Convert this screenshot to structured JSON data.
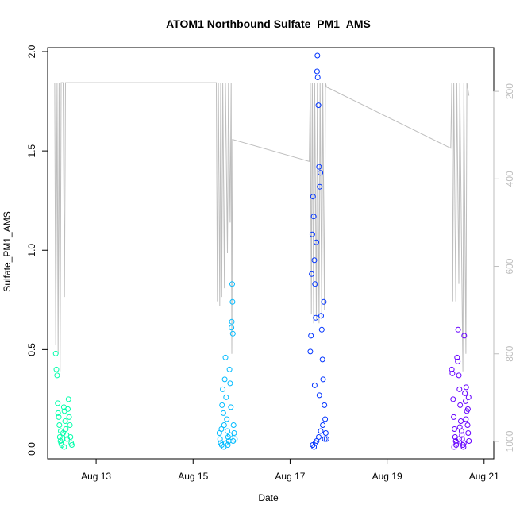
{
  "chart_data": {
    "type": "scatter",
    "title": "ATOM1 Northbound Sulfate_PM1_AMS",
    "xlabel": "Date",
    "ylabel": "Sulfate_PM1_AMS",
    "xlim": [
      "2016-08-12",
      "2016-08-21.2"
    ],
    "ylim": [
      -0.05,
      2.02
    ],
    "y_ticks": [
      0.0,
      0.5,
      1.0,
      1.5,
      2.0
    ],
    "x_ticks": [
      {
        "date": "2016-08-13",
        "label": "Aug 13"
      },
      {
        "date": "2016-08-15",
        "label": "Aug 15"
      },
      {
        "date": "2016-08-17",
        "label": "Aug 17"
      },
      {
        "date": "2016-08-19",
        "label": "Aug 19"
      },
      {
        "date": "2016-08-21",
        "label": "Aug 21"
      }
    ],
    "y2_reversed": true,
    "y2_ticks": [
      200,
      400,
      600,
      800,
      1000
    ],
    "y2_color": "#bebebe",
    "point_color_scale": [
      "#00ffcc",
      "#00ccff",
      "#0033ff",
      "#6600ff"
    ],
    "series": [
      {
        "name": "",
        "day": "Aug 12",
        "color": "#00ffaa",
        "points": [
          [
            "2016-08-12 04:00",
            0.48
          ],
          [
            "2016-08-12 04:20",
            0.4
          ],
          [
            "2016-08-12 04:40",
            0.37
          ],
          [
            "2016-08-12 05:00",
            0.23
          ],
          [
            "2016-08-12 05:10",
            0.18
          ],
          [
            "2016-08-12 05:30",
            0.16
          ],
          [
            "2016-08-12 05:50",
            0.12
          ],
          [
            "2016-08-12 06:00",
            0.06
          ],
          [
            "2016-08-12 06:20",
            0.04
          ],
          [
            "2016-08-12 06:40",
            0.03
          ],
          [
            "2016-08-12 07:00",
            0.02
          ],
          [
            "2016-08-12 07:20",
            0.05
          ],
          [
            "2016-08-12 07:40",
            0.08
          ],
          [
            "2016-08-12 08:00",
            0.21
          ],
          [
            "2016-08-12 08:20",
            0.19
          ],
          [
            "2016-08-12 08:40",
            0.14
          ],
          [
            "2016-08-12 09:00",
            0.1
          ],
          [
            "2016-08-12 09:20",
            0.07
          ],
          [
            "2016-08-12 09:40",
            0.05
          ],
          [
            "2016-08-12 10:00",
            0.2
          ],
          [
            "2016-08-12 10:20",
            0.25
          ],
          [
            "2016-08-12 10:40",
            0.16
          ],
          [
            "2016-08-12 11:00",
            0.12
          ],
          [
            "2016-08-12 11:20",
            0.06
          ],
          [
            "2016-08-12 11:40",
            0.03
          ],
          [
            "2016-08-12 12:00",
            0.02
          ],
          [
            "2016-08-12 06:30",
            0.09
          ],
          [
            "2016-08-12 08:10",
            0.01
          ]
        ]
      },
      {
        "name": "",
        "day": "Aug 15",
        "color": "#00bbff",
        "points": [
          [
            "2016-08-15 13:00",
            0.08
          ],
          [
            "2016-08-15 13:20",
            0.05
          ],
          [
            "2016-08-15 13:40",
            0.03
          ],
          [
            "2016-08-15 14:00",
            0.1
          ],
          [
            "2016-08-15 14:20",
            0.22
          ],
          [
            "2016-08-15 14:40",
            0.3
          ],
          [
            "2016-08-15 15:00",
            0.18
          ],
          [
            "2016-08-15 15:20",
            0.12
          ],
          [
            "2016-08-15 15:40",
            0.35
          ],
          [
            "2016-08-15 16:00",
            0.46
          ],
          [
            "2016-08-15 16:20",
            0.26
          ],
          [
            "2016-08-15 16:40",
            0.15
          ],
          [
            "2016-08-15 17:00",
            0.09
          ],
          [
            "2016-08-15 17:20",
            0.06
          ],
          [
            "2016-08-15 17:40",
            0.04
          ],
          [
            "2016-08-15 18:00",
            0.4
          ],
          [
            "2016-08-15 18:20",
            0.33
          ],
          [
            "2016-08-15 18:40",
            0.21
          ],
          [
            "2016-08-15 19:00",
            0.61
          ],
          [
            "2016-08-15 19:10",
            0.64
          ],
          [
            "2016-08-15 19:20",
            0.83
          ],
          [
            "2016-08-15 19:30",
            0.74
          ],
          [
            "2016-08-15 19:40",
            0.58
          ],
          [
            "2016-08-15 20:00",
            0.12
          ],
          [
            "2016-08-15 20:20",
            0.08
          ],
          [
            "2016-08-15 20:40",
            0.05
          ],
          [
            "2016-08-15 14:10",
            0.02
          ],
          [
            "2016-08-15 15:10",
            0.01
          ],
          [
            "2016-08-15 16:10",
            0.03
          ],
          [
            "2016-08-15 17:10",
            0.02
          ],
          [
            "2016-08-15 18:10",
            0.07
          ],
          [
            "2016-08-15 19:50",
            0.04
          ]
        ]
      },
      {
        "name": "",
        "day": "Aug 17",
        "color": "#0033ff",
        "points": [
          [
            "2016-08-17 10:00",
            0.49
          ],
          [
            "2016-08-17 10:20",
            0.57
          ],
          [
            "2016-08-17 10:40",
            0.88
          ],
          [
            "2016-08-17 11:00",
            1.08
          ],
          [
            "2016-08-17 11:20",
            1.27
          ],
          [
            "2016-08-17 11:40",
            1.17
          ],
          [
            "2016-08-17 12:00",
            0.95
          ],
          [
            "2016-08-17 12:20",
            0.83
          ],
          [
            "2016-08-17 12:40",
            0.66
          ],
          [
            "2016-08-17 13:00",
            1.04
          ],
          [
            "2016-08-17 13:20",
            1.9
          ],
          [
            "2016-08-17 13:30",
            1.98
          ],
          [
            "2016-08-17 13:40",
            1.87
          ],
          [
            "2016-08-17 14:00",
            1.73
          ],
          [
            "2016-08-17 14:20",
            1.42
          ],
          [
            "2016-08-17 14:40",
            1.32
          ],
          [
            "2016-08-17 15:00",
            1.39
          ],
          [
            "2016-08-17 15:20",
            0.67
          ],
          [
            "2016-08-17 15:40",
            0.6
          ],
          [
            "2016-08-17 16:00",
            0.45
          ],
          [
            "2016-08-17 16:20",
            0.35
          ],
          [
            "2016-08-17 16:40",
            0.74
          ],
          [
            "2016-08-17 17:00",
            0.22
          ],
          [
            "2016-08-17 17:20",
            0.15
          ],
          [
            "2016-08-17 17:40",
            0.08
          ],
          [
            "2016-08-17 18:00",
            0.05
          ],
          [
            "2016-08-17 11:10",
            0.02
          ],
          [
            "2016-08-17 11:50",
            0.01
          ],
          [
            "2016-08-17 12:30",
            0.03
          ],
          [
            "2016-08-17 13:10",
            0.04
          ],
          [
            "2016-08-17 14:10",
            0.06
          ],
          [
            "2016-08-17 15:10",
            0.09
          ],
          [
            "2016-08-17 16:10",
            0.12
          ],
          [
            "2016-08-17 17:10",
            0.05
          ],
          [
            "2016-08-17 12:10",
            0.32
          ],
          [
            "2016-08-17 14:30",
            0.27
          ]
        ]
      },
      {
        "name": "",
        "day": "Aug 20",
        "color": "#6600ff",
        "points": [
          [
            "2016-08-20 08:00",
            0.4
          ],
          [
            "2016-08-20 08:20",
            0.38
          ],
          [
            "2016-08-20 08:40",
            0.25
          ],
          [
            "2016-08-20 09:00",
            0.16
          ],
          [
            "2016-08-20 09:20",
            0.1
          ],
          [
            "2016-08-20 09:40",
            0.06
          ],
          [
            "2016-08-20 10:00",
            0.04
          ],
          [
            "2016-08-20 10:20",
            0.03
          ],
          [
            "2016-08-20 10:40",
            0.46
          ],
          [
            "2016-08-20 11:00",
            0.44
          ],
          [
            "2016-08-20 11:10",
            0.6
          ],
          [
            "2016-08-20 11:30",
            0.37
          ],
          [
            "2016-08-20 11:50",
            0.3
          ],
          [
            "2016-08-20 12:10",
            0.22
          ],
          [
            "2016-08-20 12:30",
            0.14
          ],
          [
            "2016-08-20 12:50",
            0.09
          ],
          [
            "2016-08-20 13:10",
            0.05
          ],
          [
            "2016-08-20 13:30",
            0.02
          ],
          [
            "2016-08-20 13:50",
            0.01
          ],
          [
            "2016-08-20 14:10",
            0.57
          ],
          [
            "2016-08-20 14:30",
            0.28
          ],
          [
            "2016-08-20 14:50",
            0.24
          ],
          [
            "2016-08-20 15:10",
            0.31
          ],
          [
            "2016-08-20 15:30",
            0.19
          ],
          [
            "2016-08-20 15:50",
            0.12
          ],
          [
            "2016-08-20 16:10",
            0.08
          ],
          [
            "2016-08-20 16:30",
            0.04
          ],
          [
            "2016-08-20 09:10",
            0.01
          ],
          [
            "2016-08-20 10:10",
            0.02
          ],
          [
            "2016-08-20 12:00",
            0.11
          ],
          [
            "2016-08-20 13:00",
            0.07
          ],
          [
            "2016-08-20 14:00",
            0.03
          ],
          [
            "2016-08-20 15:00",
            0.15
          ],
          [
            "2016-08-20 16:00",
            0.2
          ],
          [
            "2016-08-20 16:20",
            0.26
          ],
          [
            "2016-08-20 11:40",
            0.05
          ]
        ]
      }
    ],
    "altitude_series": {
      "name": "",
      "color": "#bebebe",
      "points": [
        [
          "2016-08-12 03:30",
          180
        ],
        [
          "2016-08-12 04:00",
          780
        ],
        [
          "2016-08-12 04:40",
          180
        ],
        [
          "2016-08-12 05:10",
          800
        ],
        [
          "2016-08-12 05:40",
          180
        ],
        [
          "2016-08-12 06:10",
          840
        ],
        [
          "2016-08-12 06:40",
          180
        ],
        [
          "2016-08-12 07:40",
          180
        ],
        [
          "2016-08-12 08:20",
          670
        ],
        [
          "2016-08-12 08:50",
          180
        ],
        [
          "2016-08-12 10:30",
          180
        ],
        [
          "2016-08-15 11:30",
          180
        ],
        [
          "2016-08-15 12:00",
          680
        ],
        [
          "2016-08-15 12:30",
          180
        ],
        [
          "2016-08-15 13:10",
          690
        ],
        [
          "2016-08-15 13:40",
          180
        ],
        [
          "2016-08-15 14:10",
          670
        ],
        [
          "2016-08-15 14:40",
          180
        ],
        [
          "2016-08-15 15:30",
          650
        ],
        [
          "2016-08-15 16:00",
          180
        ],
        [
          "2016-08-15 17:00",
          570
        ],
        [
          "2016-08-15 17:30",
          180
        ],
        [
          "2016-08-15 18:20",
          500
        ],
        [
          "2016-08-15 18:50",
          180
        ],
        [
          "2016-08-15 19:10",
          800
        ],
        [
          "2016-08-15 19:30",
          310
        ],
        [
          "2016-08-17 09:30",
          360
        ],
        [
          "2016-08-17 10:00",
          180
        ],
        [
          "2016-08-17 10:30",
          710
        ],
        [
          "2016-08-17 11:00",
          180
        ],
        [
          "2016-08-17 11:40",
          730
        ],
        [
          "2016-08-17 12:10",
          180
        ],
        [
          "2016-08-17 13:00",
          720
        ],
        [
          "2016-08-17 13:30",
          180
        ],
        [
          "2016-08-17 14:20",
          730
        ],
        [
          "2016-08-17 14:50",
          180
        ],
        [
          "2016-08-17 15:40",
          720
        ],
        [
          "2016-08-17 16:10",
          180
        ],
        [
          "2016-08-17 17:00",
          700
        ],
        [
          "2016-08-17 17:30",
          180
        ],
        [
          "2016-08-17 18:00",
          190
        ],
        [
          "2016-08-20 07:30",
          330
        ],
        [
          "2016-08-20 08:00",
          180
        ],
        [
          "2016-08-20 08:30",
          680
        ],
        [
          "2016-08-20 09:00",
          180
        ],
        [
          "2016-08-20 10:00",
          680
        ],
        [
          "2016-08-20 10:30",
          180
        ],
        [
          "2016-08-20 11:30",
          640
        ],
        [
          "2016-08-20 12:00",
          180
        ],
        [
          "2016-08-20 13:30",
          840
        ],
        [
          "2016-08-20 14:00",
          180
        ],
        [
          "2016-08-20 15:00",
          800
        ],
        [
          "2016-08-20 15:30",
          180
        ],
        [
          "2016-08-20 16:30",
          210
        ]
      ]
    }
  }
}
